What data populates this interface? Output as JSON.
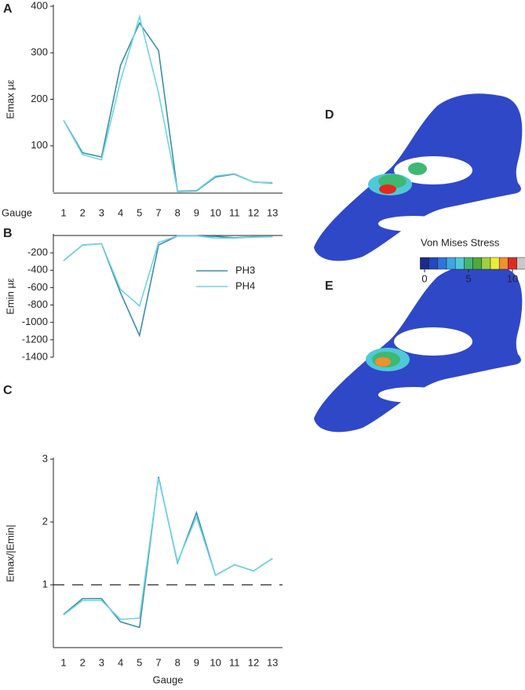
{
  "chart_data": [
    {
      "type": "line",
      "title": "A",
      "ylabel": "Emax µε",
      "xlabel": "Gauge",
      "categories": [
        "1",
        "2",
        "3",
        "4",
        "5",
        "7",
        "8",
        "9",
        "10",
        "11",
        "12",
        "13"
      ],
      "series": [
        {
          "name": "PH3",
          "color": "#3a8fa8",
          "values": [
            155,
            85,
            76,
            273,
            364,
            305,
            2,
            3,
            33,
            39,
            22,
            20
          ]
        },
        {
          "name": "PH4",
          "color": "#6fd4e4",
          "values": [
            155,
            81,
            70,
            240,
            378,
            214,
            3,
            4,
            35,
            40,
            22,
            21
          ]
        }
      ],
      "ylim": [
        0,
        400
      ],
      "yticks": [
        100,
        200,
        300,
        400
      ]
    },
    {
      "type": "line",
      "title": "B",
      "ylabel": "Emin µε",
      "series": [
        {
          "name": "PH3",
          "color": "#3a8fa8",
          "values": [
            -290,
            -110,
            -95,
            -660,
            -1150,
            -110,
            -5,
            -5,
            -10,
            -25,
            -15,
            -15
          ]
        },
        {
          "name": "PH4",
          "color": "#6fd4e4",
          "values": [
            -290,
            -110,
            -95,
            -620,
            -810,
            -80,
            -5,
            -5,
            -30,
            -30,
            -20,
            -15
          ]
        }
      ],
      "ylim": [
        -1400,
        0
      ],
      "yticks": [
        -200,
        -400,
        -600,
        -800,
        -1000,
        -1200,
        -1400
      ],
      "legend": "right"
    },
    {
      "type": "line",
      "title": "C",
      "ylabel": "Emax/|Emin|",
      "xlabel": "Gauge",
      "categories": [
        "1",
        "2",
        "3",
        "4",
        "5",
        "7",
        "8",
        "9",
        "10",
        "11",
        "12",
        "13"
      ],
      "series": [
        {
          "name": "PH3",
          "color": "#3a8fa8",
          "values": [
            0.53,
            0.78,
            0.78,
            0.41,
            0.32,
            2.72,
            1.35,
            2.15,
            1.15,
            1.32,
            1.22,
            1.42
          ]
        },
        {
          "name": "PH4",
          "color": "#6fd4e4",
          "values": [
            0.52,
            0.75,
            0.75,
            0.45,
            0.47,
            2.7,
            1.37,
            2.08,
            1.15,
            1.32,
            1.22,
            1.42
          ]
        }
      ],
      "ylim": [
        0,
        3
      ],
      "yticks": [
        1,
        2,
        3
      ],
      "reference_line": 1
    }
  ],
  "figure": {
    "panels": [
      "D",
      "E"
    ],
    "colorbar": {
      "title": "Von Mises Stress",
      "clim": [
        0,
        10
      ],
      "ticks": [
        0,
        5,
        10
      ],
      "colors": [
        "#1c2a8c",
        "#2447c0",
        "#2f74d8",
        "#3fa6e4",
        "#4fc9d8",
        "#3fb872",
        "#4faa3a",
        "#9fd040",
        "#ecec3c",
        "#f09030",
        "#e02a20",
        "#c9c9c9"
      ]
    }
  }
}
